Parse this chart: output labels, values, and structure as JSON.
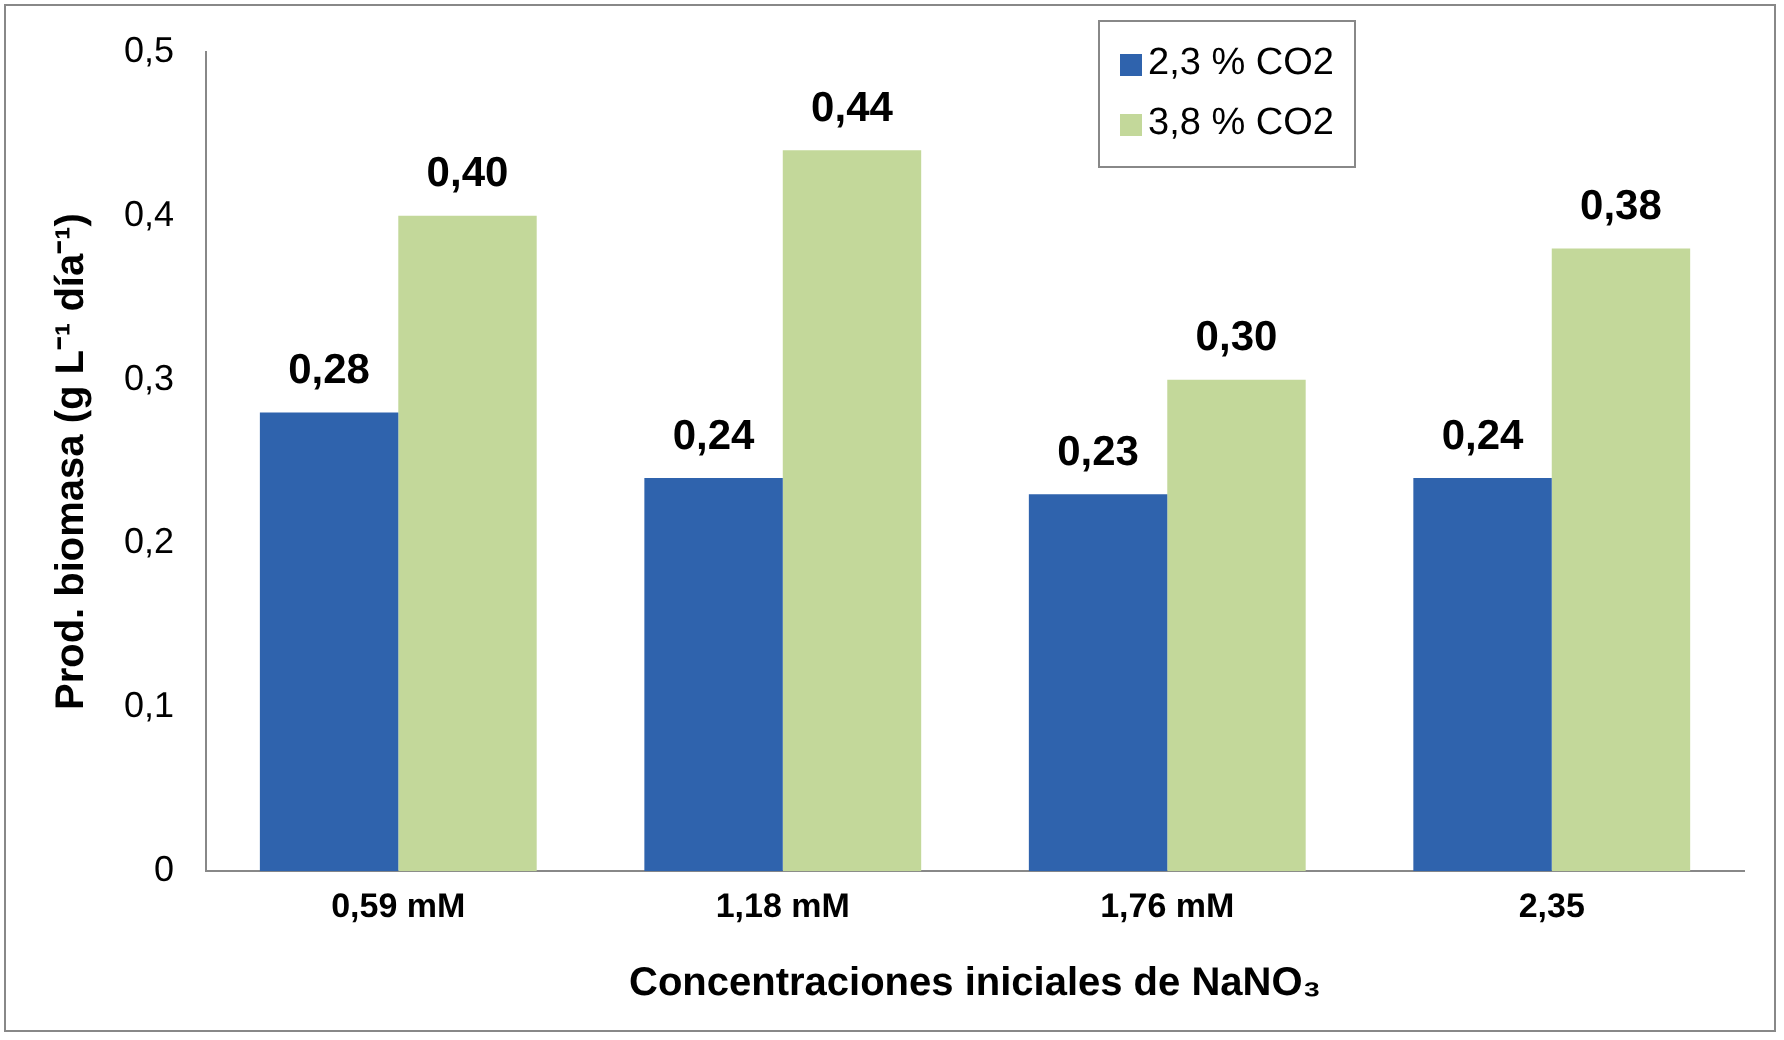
{
  "chart_data": {
    "type": "bar",
    "xlabel": "Concentraciones iniciales de NaNO₃",
    "ylabel": "Prod. biomasa (g L⁻¹ día⁻¹)",
    "categories": [
      "0,59 mM",
      "1,18 mM",
      "1,76 mM",
      "2,35"
    ],
    "series": [
      {
        "name": "2,3 % CO2",
        "color": "#2f63ad",
        "values": [
          0.28,
          0.24,
          0.23,
          0.24
        ],
        "value_labels": [
          "0,28",
          "0,24",
          "0,23",
          "0,24"
        ]
      },
      {
        "name": "3,8 % CO2",
        "color": "#c3d89a",
        "values": [
          0.4,
          0.44,
          0.3,
          0.38
        ],
        "value_labels": [
          "0,40",
          "0,44",
          "0,30",
          "0,38"
        ]
      }
    ],
    "ylim": [
      0,
      0.5
    ],
    "yticks": [
      0,
      {
        "value": 0.1,
        "label": "0,1"
      },
      {
        "value": 0.2,
        "label": "0,2"
      },
      {
        "value": 0.3,
        "label": "0,3"
      },
      {
        "value": 0.4,
        "label": "0,4"
      },
      {
        "value": 0.5,
        "label": "0,5"
      }
    ],
    "grid": false,
    "legend": "top right"
  }
}
